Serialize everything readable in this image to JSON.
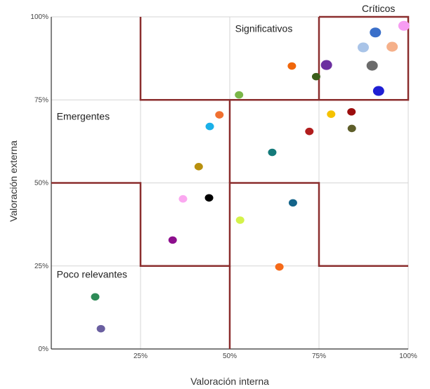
{
  "chart_data": {
    "type": "scatter",
    "title": "",
    "xlabel": "Valoración interna",
    "ylabel": "Valoración externa",
    "xlim": [
      0,
      100
    ],
    "ylim": [
      0,
      100
    ],
    "grid": true,
    "x_ticks": [
      {
        "value": 25,
        "label": "25%"
      },
      {
        "value": 50,
        "label": "50%"
      },
      {
        "value": 75,
        "label": "75%"
      },
      {
        "value": 100,
        "label": "100%"
      }
    ],
    "y_ticks": [
      {
        "value": 0,
        "label": "0%"
      },
      {
        "value": 25,
        "label": "25%"
      },
      {
        "value": 50,
        "label": "50%"
      },
      {
        "value": 75,
        "label": "75%"
      },
      {
        "value": 100,
        "label": "100%"
      }
    ],
    "zone_labels": [
      {
        "text": "Críticos",
        "x": 87,
        "y": 101.5
      },
      {
        "text": "Significativos",
        "x": 51.5,
        "y": 95.5
      },
      {
        "text": "Emergentes",
        "x": 1.5,
        "y": 69
      },
      {
        "text": "Poco relevantes",
        "x": 1.5,
        "y": 21.5
      }
    ],
    "zone_boundary_color": "#8b2e2e",
    "zone_boundaries": [
      [
        [
          25,
          100
        ],
        [
          25,
          75
        ],
        [
          75,
          75
        ],
        [
          75,
          100
        ]
      ],
      [
        [
          75,
          100
        ],
        [
          100,
          100
        ],
        [
          100,
          75
        ],
        [
          75,
          75
        ]
      ],
      [
        [
          0,
          50
        ],
        [
          25,
          50
        ],
        [
          25,
          25
        ],
        [
          50,
          25
        ],
        [
          50,
          50
        ],
        [
          75,
          50
        ],
        [
          75,
          25
        ],
        [
          100,
          25
        ]
      ],
      [
        [
          25,
          75
        ],
        [
          50,
          75
        ],
        [
          50,
          50
        ]
      ],
      [
        [
          50,
          25
        ],
        [
          50,
          0
        ]
      ]
    ],
    "points": [
      {
        "x": 98.8,
        "y": 97.3,
        "color": "#f79cf2",
        "r": 8
      },
      {
        "x": 90.8,
        "y": 95.3,
        "color": "#3a6fc9",
        "r": 8
      },
      {
        "x": 87.4,
        "y": 90.8,
        "color": "#a9c4e8",
        "r": 8
      },
      {
        "x": 95.5,
        "y": 91.0,
        "color": "#f5b08a",
        "r": 8
      },
      {
        "x": 77.1,
        "y": 85.5,
        "color": "#6b2fa0",
        "r": 8
      },
      {
        "x": 89.9,
        "y": 85.3,
        "color": "#6b6b6b",
        "r": 8
      },
      {
        "x": 91.7,
        "y": 77.7,
        "color": "#1f1fd4",
        "r": 8
      },
      {
        "x": 67.4,
        "y": 85.2,
        "color": "#f0660a",
        "r": 6
      },
      {
        "x": 74.2,
        "y": 82.0,
        "color": "#3b5e1a",
        "r": 6
      },
      {
        "x": 52.6,
        "y": 76.5,
        "color": "#7ab648",
        "r": 6
      },
      {
        "x": 78.4,
        "y": 70.7,
        "color": "#f5c200",
        "r": 6
      },
      {
        "x": 84.1,
        "y": 71.4,
        "color": "#9c0d0d",
        "r": 6
      },
      {
        "x": 84.2,
        "y": 66.4,
        "color": "#5e5e2a",
        "r": 6
      },
      {
        "x": 47.1,
        "y": 70.5,
        "color": "#f07030",
        "r": 6
      },
      {
        "x": 44.4,
        "y": 67.0,
        "color": "#1ab0e8",
        "r": 6
      },
      {
        "x": 72.3,
        "y": 65.5,
        "color": "#b11d1d",
        "r": 6
      },
      {
        "x": 61.9,
        "y": 59.2,
        "color": "#147a7a",
        "r": 6
      },
      {
        "x": 41.3,
        "y": 54.9,
        "color": "#b8900e",
        "r": 6
      },
      {
        "x": 36.9,
        "y": 45.2,
        "color": "#fba8f0",
        "r": 6
      },
      {
        "x": 44.2,
        "y": 45.5,
        "color": "#000000",
        "r": 6
      },
      {
        "x": 67.7,
        "y": 44.0,
        "color": "#14648a",
        "r": 6
      },
      {
        "x": 52.9,
        "y": 38.8,
        "color": "#d4f24a",
        "r": 6
      },
      {
        "x": 34.0,
        "y": 32.8,
        "color": "#8d0f8d",
        "r": 6
      },
      {
        "x": 63.9,
        "y": 24.7,
        "color": "#f56a1a",
        "r": 6
      },
      {
        "x": 12.3,
        "y": 15.7,
        "color": "#2e8b57",
        "r": 6
      },
      {
        "x": 13.9,
        "y": 6.1,
        "color": "#6a5fa0",
        "r": 6
      }
    ]
  }
}
